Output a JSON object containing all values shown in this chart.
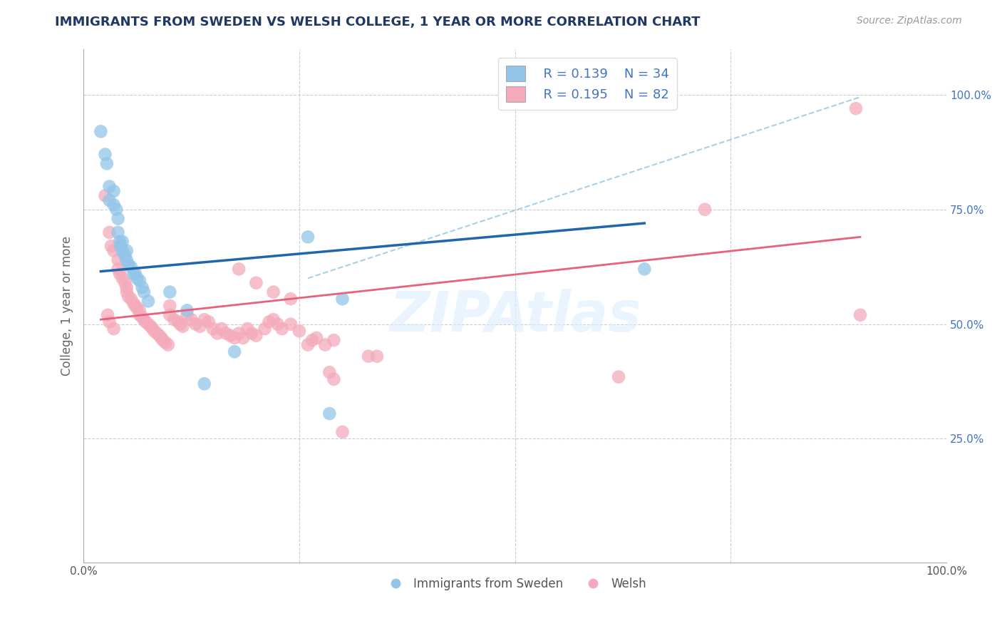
{
  "title": "IMMIGRANTS FROM SWEDEN VS WELSH COLLEGE, 1 YEAR OR MORE CORRELATION CHART",
  "source": "Source: ZipAtlas.com",
  "ylabel": "College, 1 year or more",
  "legend_label1": "Immigrants from Sweden",
  "legend_label2": "Welsh",
  "r1": "0.139",
  "n1": "34",
  "r2": "0.195",
  "n2": "82",
  "xlim": [
    0.0,
    1.0
  ],
  "ylim": [
    -0.02,
    1.1
  ],
  "yticks": [
    0.25,
    0.5,
    0.75,
    1.0
  ],
  "ytick_labels": [
    "25.0%",
    "50.0%",
    "75.0%",
    "100.0%"
  ],
  "watermark": "ZIPAtlas",
  "blue_color": "#92C5E8",
  "pink_color": "#F4AABB",
  "blue_line_color": "#2166AC",
  "pink_line_color": "#E8607A",
  "dashed_line_color": "#92C5E8",
  "blue_scatter": [
    [
      0.02,
      0.92
    ],
    [
      0.025,
      0.87
    ],
    [
      0.027,
      0.85
    ],
    [
      0.03,
      0.8
    ],
    [
      0.03,
      0.77
    ],
    [
      0.035,
      0.79
    ],
    [
      0.035,
      0.76
    ],
    [
      0.038,
      0.75
    ],
    [
      0.04,
      0.73
    ],
    [
      0.04,
      0.7
    ],
    [
      0.042,
      0.68
    ],
    [
      0.043,
      0.67
    ],
    [
      0.045,
      0.68
    ],
    [
      0.045,
      0.66
    ],
    [
      0.048,
      0.65
    ],
    [
      0.05,
      0.66
    ],
    [
      0.05,
      0.64
    ],
    [
      0.052,
      0.63
    ],
    [
      0.055,
      0.625
    ],
    [
      0.058,
      0.61
    ],
    [
      0.06,
      0.61
    ],
    [
      0.062,
      0.6
    ],
    [
      0.065,
      0.595
    ],
    [
      0.068,
      0.58
    ],
    [
      0.07,
      0.57
    ],
    [
      0.075,
      0.55
    ],
    [
      0.1,
      0.57
    ],
    [
      0.12,
      0.53
    ],
    [
      0.14,
      0.37
    ],
    [
      0.175,
      0.44
    ],
    [
      0.26,
      0.69
    ],
    [
      0.285,
      0.305
    ],
    [
      0.3,
      0.555
    ],
    [
      0.65,
      0.62
    ]
  ],
  "pink_scatter": [
    [
      0.025,
      0.78
    ],
    [
      0.03,
      0.7
    ],
    [
      0.032,
      0.67
    ],
    [
      0.035,
      0.66
    ],
    [
      0.04,
      0.64
    ],
    [
      0.04,
      0.62
    ],
    [
      0.042,
      0.61
    ],
    [
      0.045,
      0.6
    ],
    [
      0.048,
      0.59
    ],
    [
      0.05,
      0.58
    ],
    [
      0.05,
      0.57
    ],
    [
      0.052,
      0.56
    ],
    [
      0.055,
      0.555
    ],
    [
      0.058,
      0.545
    ],
    [
      0.06,
      0.54
    ],
    [
      0.062,
      0.535
    ],
    [
      0.065,
      0.53
    ],
    [
      0.065,
      0.52
    ],
    [
      0.068,
      0.515
    ],
    [
      0.07,
      0.51
    ],
    [
      0.072,
      0.505
    ],
    [
      0.075,
      0.5
    ],
    [
      0.078,
      0.495
    ],
    [
      0.08,
      0.49
    ],
    [
      0.082,
      0.485
    ],
    [
      0.085,
      0.48
    ],
    [
      0.088,
      0.475
    ],
    [
      0.09,
      0.47
    ],
    [
      0.092,
      0.465
    ],
    [
      0.095,
      0.46
    ],
    [
      0.098,
      0.455
    ],
    [
      0.1,
      0.54
    ],
    [
      0.1,
      0.52
    ],
    [
      0.105,
      0.51
    ],
    [
      0.11,
      0.505
    ],
    [
      0.112,
      0.5
    ],
    [
      0.115,
      0.495
    ],
    [
      0.12,
      0.52
    ],
    [
      0.125,
      0.51
    ],
    [
      0.13,
      0.5
    ],
    [
      0.135,
      0.495
    ],
    [
      0.14,
      0.51
    ],
    [
      0.145,
      0.505
    ],
    [
      0.15,
      0.49
    ],
    [
      0.155,
      0.48
    ],
    [
      0.16,
      0.49
    ],
    [
      0.165,
      0.48
    ],
    [
      0.17,
      0.475
    ],
    [
      0.175,
      0.47
    ],
    [
      0.18,
      0.48
    ],
    [
      0.185,
      0.47
    ],
    [
      0.19,
      0.49
    ],
    [
      0.195,
      0.48
    ],
    [
      0.2,
      0.475
    ],
    [
      0.21,
      0.49
    ],
    [
      0.215,
      0.505
    ],
    [
      0.22,
      0.51
    ],
    [
      0.225,
      0.5
    ],
    [
      0.23,
      0.49
    ],
    [
      0.24,
      0.5
    ],
    [
      0.25,
      0.485
    ],
    [
      0.26,
      0.455
    ],
    [
      0.265,
      0.465
    ],
    [
      0.27,
      0.47
    ],
    [
      0.28,
      0.455
    ],
    [
      0.29,
      0.465
    ],
    [
      0.03,
      0.505
    ],
    [
      0.035,
      0.49
    ],
    [
      0.028,
      0.52
    ],
    [
      0.18,
      0.62
    ],
    [
      0.2,
      0.59
    ],
    [
      0.22,
      0.57
    ],
    [
      0.24,
      0.555
    ],
    [
      0.285,
      0.395
    ],
    [
      0.29,
      0.38
    ],
    [
      0.33,
      0.43
    ],
    [
      0.34,
      0.43
    ],
    [
      0.62,
      0.385
    ],
    [
      0.72,
      0.75
    ],
    [
      0.895,
      0.97
    ],
    [
      0.9,
      0.52
    ],
    [
      0.3,
      0.265
    ]
  ],
  "blue_line_x": [
    0.02,
    0.65
  ],
  "blue_line_y": [
    0.615,
    0.72
  ],
  "pink_line_x": [
    0.02,
    0.9
  ],
  "pink_line_y": [
    0.51,
    0.69
  ],
  "dash_line_x": [
    0.26,
    0.9
  ],
  "dash_line_y": [
    0.6,
    0.995
  ],
  "background_color": "#FFFFFF",
  "grid_color": "#CCCCCC"
}
